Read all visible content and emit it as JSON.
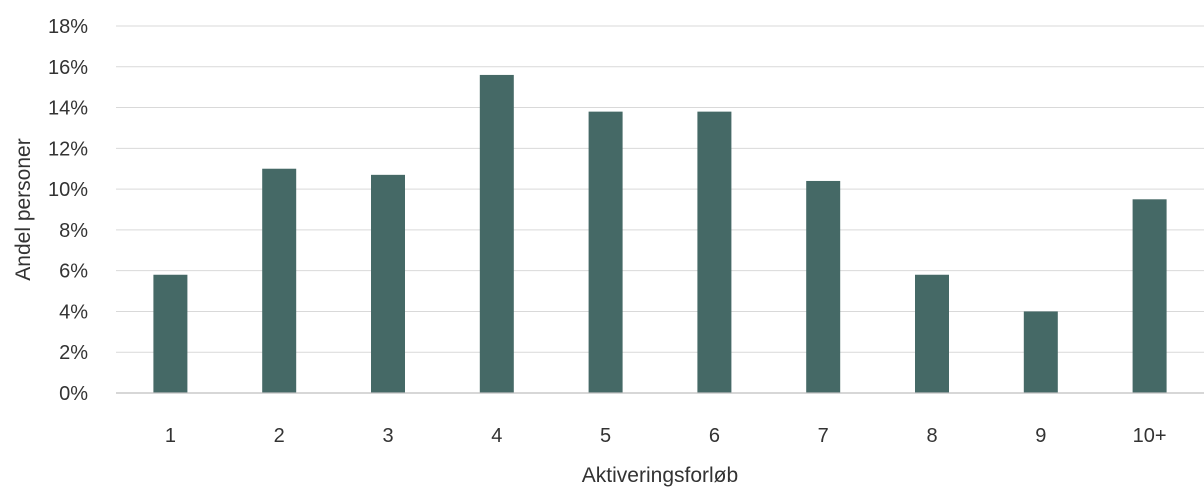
{
  "chart_data": {
    "type": "bar",
    "title": "",
    "xlabel": "Aktiveringsforløb",
    "ylabel": "Andel personer",
    "categories": [
      "1",
      "2",
      "3",
      "4",
      "5",
      "6",
      "7",
      "8",
      "9",
      "10+"
    ],
    "values": [
      5.8,
      11.0,
      10.7,
      15.6,
      13.8,
      13.8,
      10.4,
      5.8,
      4.0,
      9.5
    ],
    "value_unit": "%",
    "ylim": [
      0,
      18
    ],
    "yticks": [
      0,
      2,
      4,
      6,
      8,
      10,
      12,
      14,
      16,
      18
    ],
    "ytick_labels": [
      "0%",
      "2%",
      "4%",
      "6%",
      "8%",
      "10%",
      "12%",
      "14%",
      "16%",
      "18%"
    ],
    "grid": true,
    "legend": "none",
    "colors": {
      "bar": "#456966",
      "grid": "#d9d9d9",
      "baseline": "#bfbfbf",
      "text": "#333333"
    }
  }
}
